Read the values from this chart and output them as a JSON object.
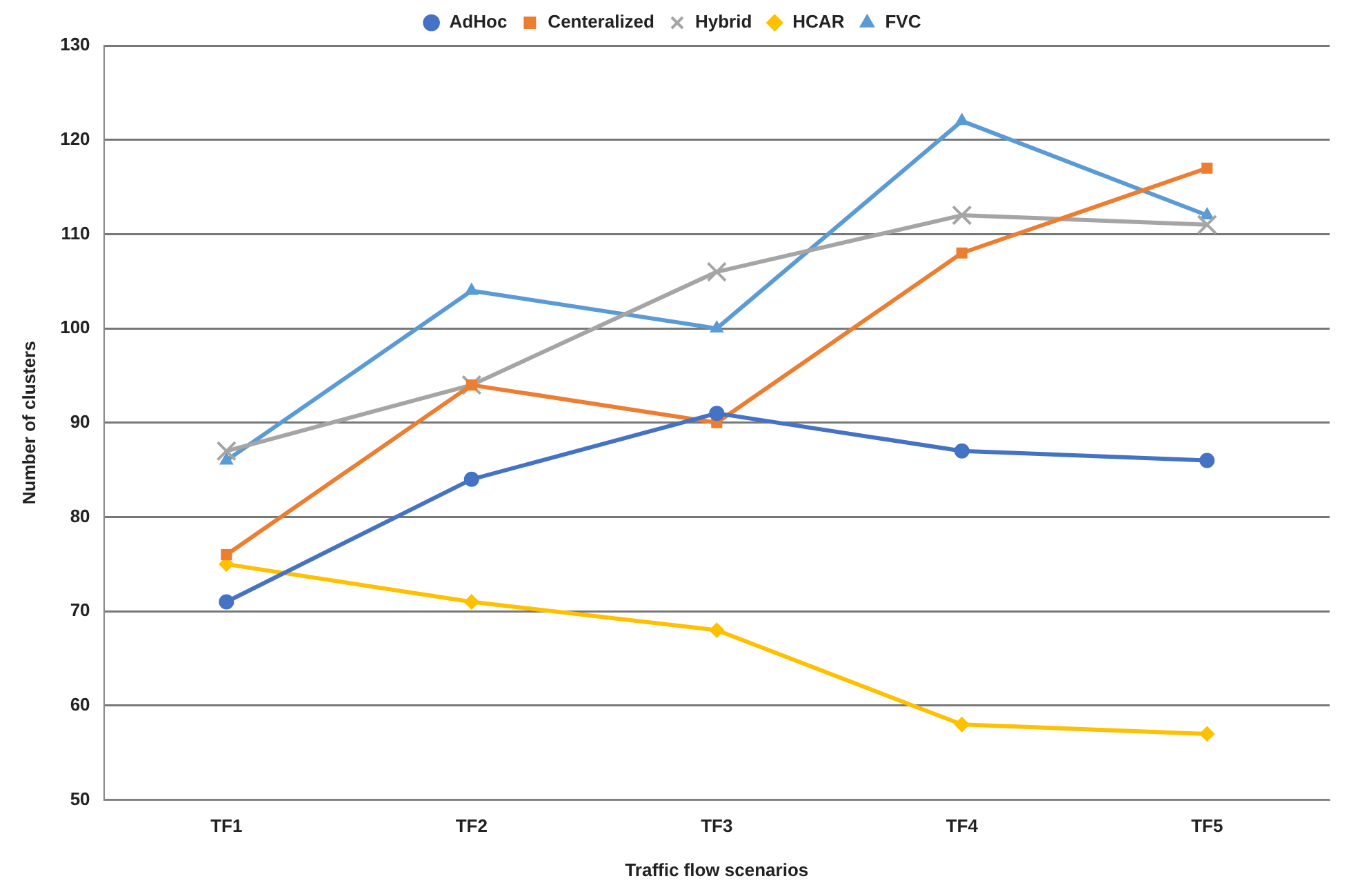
{
  "chart_data": {
    "type": "line",
    "xlabel": "Traffic flow scenarios",
    "ylabel": "Number of clusters",
    "categories": [
      "TF1",
      "TF2",
      "TF3",
      "TF4",
      "TF5"
    ],
    "series": [
      {
        "name": "AdHoc",
        "color": "#4472c4",
        "marker": "circle",
        "values": [
          71,
          84,
          91,
          87,
          86
        ]
      },
      {
        "name": "Centeralized",
        "color": "#ed7d31",
        "marker": "square",
        "values": [
          76,
          94,
          90,
          108,
          117
        ]
      },
      {
        "name": "Hybrid",
        "color": "#a5a5a5",
        "marker": "cross",
        "values": [
          87,
          94,
          106,
          112,
          111
        ]
      },
      {
        "name": "HCAR",
        "color": "#ffc000",
        "marker": "diamond",
        "values": [
          75,
          71,
          68,
          58,
          57
        ]
      },
      {
        "name": "FVC",
        "color": "#5b9bd5",
        "marker": "triangle",
        "values": [
          86,
          104,
          100,
          122,
          112
        ]
      }
    ],
    "ylim": [
      50,
      130
    ],
    "yticks": [
      50,
      60,
      70,
      80,
      90,
      100,
      110,
      120,
      130
    ],
    "grid": "y",
    "legend": "top"
  }
}
